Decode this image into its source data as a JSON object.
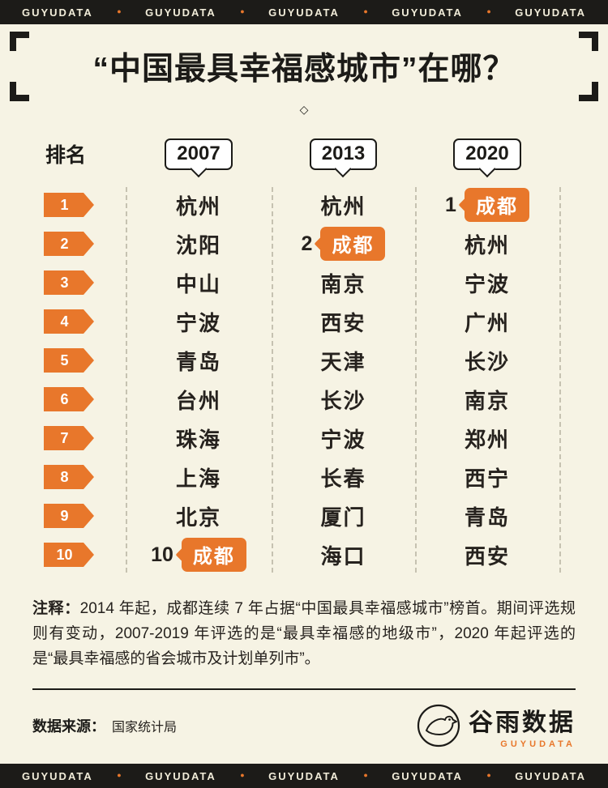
{
  "banner": {
    "brand": "GUYUDATA",
    "dot": "●",
    "repeat": 5
  },
  "title": "“中国最具幸福感城市”在哪？",
  "divider": "◇",
  "table": {
    "rank_label": "排名",
    "years": [
      "2007",
      "2013",
      "2020"
    ],
    "rows": [
      {
        "rank": "1",
        "cells": [
          {
            "text": "杭州"
          },
          {
            "text": "杭州"
          },
          {
            "text": "成都",
            "highlight": true,
            "prefix": "1"
          }
        ]
      },
      {
        "rank": "2",
        "cells": [
          {
            "text": "沈阳"
          },
          {
            "text": "成都",
            "highlight": true,
            "prefix": "2"
          },
          {
            "text": "杭州"
          }
        ]
      },
      {
        "rank": "3",
        "cells": [
          {
            "text": "中山"
          },
          {
            "text": "南京"
          },
          {
            "text": "宁波"
          }
        ]
      },
      {
        "rank": "4",
        "cells": [
          {
            "text": "宁波"
          },
          {
            "text": "西安"
          },
          {
            "text": "广州"
          }
        ]
      },
      {
        "rank": "5",
        "cells": [
          {
            "text": "青岛"
          },
          {
            "text": "天津"
          },
          {
            "text": "长沙"
          }
        ]
      },
      {
        "rank": "6",
        "cells": [
          {
            "text": "台州"
          },
          {
            "text": "长沙"
          },
          {
            "text": "南京"
          }
        ]
      },
      {
        "rank": "7",
        "cells": [
          {
            "text": "珠海"
          },
          {
            "text": "宁波"
          },
          {
            "text": "郑州"
          }
        ]
      },
      {
        "rank": "8",
        "cells": [
          {
            "text": "上海"
          },
          {
            "text": "长春"
          },
          {
            "text": "西宁"
          }
        ]
      },
      {
        "rank": "9",
        "cells": [
          {
            "text": "北京"
          },
          {
            "text": "厦门"
          },
          {
            "text": "青岛"
          }
        ]
      },
      {
        "rank": "10",
        "cells": [
          {
            "text": "成都",
            "highlight": true,
            "prefix": "10"
          },
          {
            "text": "海口"
          },
          {
            "text": "西安"
          }
        ]
      }
    ]
  },
  "chart_data": {
    "type": "table",
    "title": "“中国最具幸福感城市”在哪？",
    "columns": [
      "排名",
      "2007",
      "2013",
      "2020"
    ],
    "rows": [
      [
        "1",
        "杭州",
        "杭州",
        "成都"
      ],
      [
        "2",
        "沈阳",
        "成都",
        "杭州"
      ],
      [
        "3",
        "中山",
        "南京",
        "宁波"
      ],
      [
        "4",
        "宁波",
        "西安",
        "广州"
      ],
      [
        "5",
        "青岛",
        "天津",
        "长沙"
      ],
      [
        "6",
        "台州",
        "长沙",
        "南京"
      ],
      [
        "7",
        "珠海",
        "宁波",
        "郑州"
      ],
      [
        "8",
        "上海",
        "长春",
        "西宁"
      ],
      [
        "9",
        "北京",
        "厦门",
        "青岛"
      ],
      [
        "10",
        "成都",
        "海口",
        "西安"
      ]
    ],
    "highlights": [
      {
        "year": "2007",
        "rank": 10,
        "city": "成都"
      },
      {
        "year": "2013",
        "rank": 2,
        "city": "成都"
      },
      {
        "year": "2020",
        "rank": 1,
        "city": "成都"
      }
    ]
  },
  "note": {
    "label": "注释：",
    "text": "2014 年起，成都连续 7 年占据“中国最具幸福感城市”榜首。期间评选规则有变动，2007-2019 年评选的是“最具幸福感的地级市”，2020 年起评选的是“最具幸福感的省会城市及计划单列市”。"
  },
  "footer": {
    "source_label": "数据来源：",
    "source_value": "国家统计局",
    "logo_name": "谷雨数据",
    "logo_sub": "GUYUDATA"
  },
  "colors": {
    "accent": "#e8772b",
    "background": "#f6f3e4",
    "dark": "#1c1b18"
  }
}
